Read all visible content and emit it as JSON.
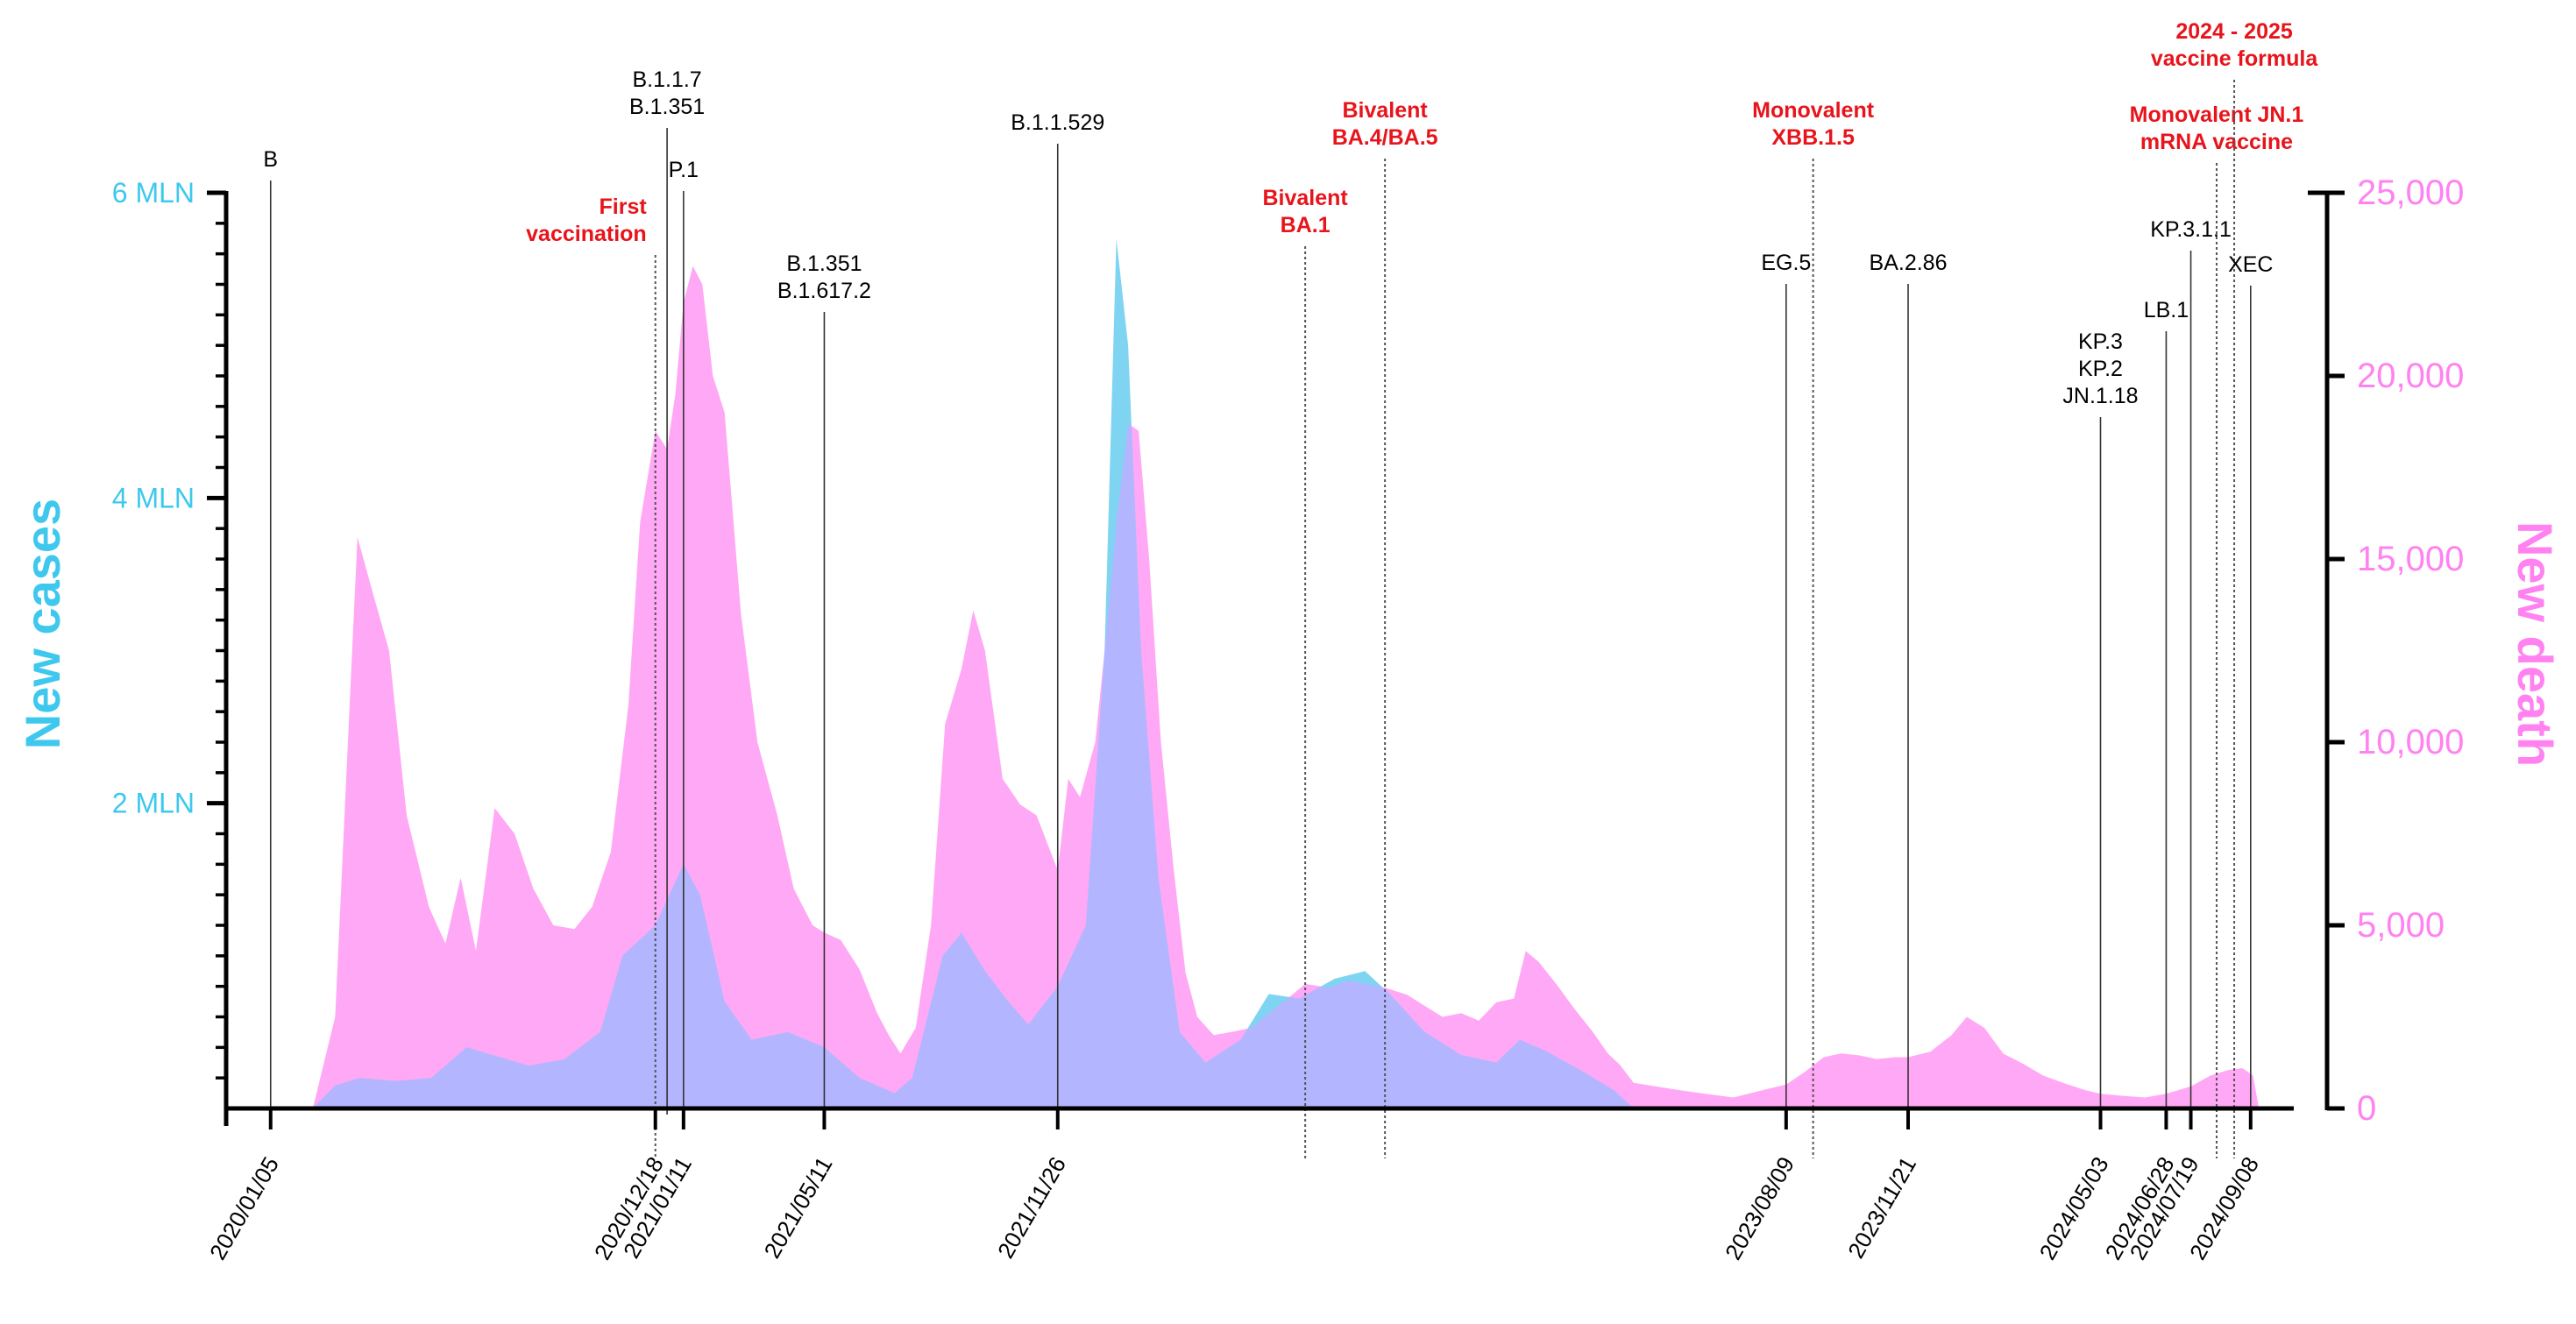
{
  "chart_data": {
    "type": "area",
    "x_domain": [
      "2020-01-05",
      "2024-10-20"
    ],
    "y_left": {
      "label": "New cases",
      "range": [
        0,
        6000000
      ],
      "ticks": [
        {
          "value": 2000000,
          "label": "2 MLN"
        },
        {
          "value": 4000000,
          "label": "4 MLN"
        },
        {
          "value": 6000000,
          "label": "6 MLN"
        }
      ],
      "color": "#3ec8ee"
    },
    "y_right": {
      "label": "New death",
      "range": [
        0,
        25000
      ],
      "ticks": [
        {
          "value": 0,
          "label": "0"
        },
        {
          "value": 5000,
          "label": "5,000"
        },
        {
          "value": 10000,
          "label": "10,000"
        },
        {
          "value": 15000,
          "label": "15,000"
        },
        {
          "value": 20000,
          "label": "20,000"
        },
        {
          "value": 25000,
          "label": "25,000"
        }
      ],
      "color": "#ff82f0"
    },
    "x_tick_labels": [
      "2020/01/05",
      "2020/12/18",
      "2021/01/11",
      "2021/05/11",
      "2021/11/26",
      "2023/08/09",
      "2023/11/21",
      "2024/05/03",
      "2024/06/28",
      "2024/07/19",
      "2024/09/08"
    ],
    "series": [
      {
        "name": "New death",
        "axis": "right",
        "color": "#ffa8f5",
        "points": [
          [
            "2020-01-05",
            0
          ],
          [
            "2020-03-01",
            0
          ],
          [
            "2020-03-20",
            2500
          ],
          [
            "2020-04-08",
            15600
          ],
          [
            "2020-04-20",
            14200
          ],
          [
            "2020-05-05",
            12500
          ],
          [
            "2020-05-20",
            8000
          ],
          [
            "2020-06-08",
            5500
          ],
          [
            "2020-06-22",
            4500
          ],
          [
            "2020-07-05",
            6300
          ],
          [
            "2020-07-18",
            4300
          ],
          [
            "2020-08-03",
            8200
          ],
          [
            "2020-08-20",
            7500
          ],
          [
            "2020-09-05",
            6000
          ],
          [
            "2020-09-22",
            5000
          ],
          [
            "2020-10-10",
            4900
          ],
          [
            "2020-10-25",
            5500
          ],
          [
            "2020-11-10",
            7000
          ],
          [
            "2020-11-25",
            11000
          ],
          [
            "2020-12-05",
            16000
          ],
          [
            "2020-12-18",
            18500
          ],
          [
            "2020-12-28",
            18000
          ],
          [
            "2021-01-04",
            19500
          ],
          [
            "2021-01-11",
            22000
          ],
          [
            "2021-01-19",
            23000
          ],
          [
            "2021-01-27",
            22500
          ],
          [
            "2021-02-05",
            20000
          ],
          [
            "2021-02-15",
            19000
          ],
          [
            "2021-03-01",
            13500
          ],
          [
            "2021-03-15",
            10000
          ],
          [
            "2021-04-01",
            8000
          ],
          [
            "2021-04-15",
            6000
          ],
          [
            "2021-05-01",
            5000
          ],
          [
            "2021-05-11",
            4800
          ],
          [
            "2021-05-25",
            4600
          ],
          [
            "2021-06-10",
            3800
          ],
          [
            "2021-06-25",
            2600
          ],
          [
            "2021-07-05",
            2000
          ],
          [
            "2021-07-15",
            1500
          ],
          [
            "2021-07-28",
            2200
          ],
          [
            "2021-08-10",
            5000
          ],
          [
            "2021-08-22",
            10500
          ],
          [
            "2021-09-05",
            12000
          ],
          [
            "2021-09-15",
            13600
          ],
          [
            "2021-09-25",
            12500
          ],
          [
            "2021-10-10",
            9000
          ],
          [
            "2021-10-25",
            8300
          ],
          [
            "2021-11-08",
            8000
          ],
          [
            "2021-11-20",
            7000
          ],
          [
            "2021-11-26",
            6500
          ],
          [
            "2021-12-05",
            9000
          ],
          [
            "2021-12-15",
            8500
          ],
          [
            "2021-12-28",
            10000
          ],
          [
            "2022-01-05",
            12500
          ],
          [
            "2022-01-15",
            16000
          ],
          [
            "2022-01-25",
            18700
          ],
          [
            "2022-02-03",
            18500
          ],
          [
            "2022-02-12",
            15000
          ],
          [
            "2022-02-22",
            10000
          ],
          [
            "2022-03-05",
            6500
          ],
          [
            "2022-03-15",
            3700
          ],
          [
            "2022-03-25",
            2500
          ],
          [
            "2022-04-08",
            2000
          ],
          [
            "2022-04-25",
            2100
          ],
          [
            "2022-05-10",
            2200
          ],
          [
            "2022-05-25",
            2600
          ],
          [
            "2022-06-10",
            3000
          ],
          [
            "2022-06-25",
            3400
          ],
          [
            "2022-07-15",
            3300
          ],
          [
            "2022-08-01",
            3500
          ],
          [
            "2022-08-15",
            3400
          ],
          [
            "2022-09-01",
            3300
          ],
          [
            "2022-09-20",
            3100
          ],
          [
            "2022-10-05",
            2800
          ],
          [
            "2022-10-20",
            2500
          ],
          [
            "2022-11-05",
            2600
          ],
          [
            "2022-11-20",
            2400
          ],
          [
            "2022-12-05",
            2900
          ],
          [
            "2022-12-20",
            3000
          ],
          [
            "2022-12-30",
            4300
          ],
          [
            "2023-01-10",
            4000
          ],
          [
            "2023-01-25",
            3400
          ],
          [
            "2023-02-10",
            2700
          ],
          [
            "2023-02-25",
            2100
          ],
          [
            "2023-03-10",
            1500
          ],
          [
            "2023-03-20",
            1200
          ],
          [
            "2023-04-01",
            700
          ],
          [
            "2023-04-20",
            600
          ],
          [
            "2023-05-10",
            500
          ],
          [
            "2023-06-01",
            400
          ],
          [
            "2023-06-25",
            300
          ],
          [
            "2023-07-20",
            500
          ],
          [
            "2023-08-09",
            650
          ],
          [
            "2023-08-25",
            1000
          ],
          [
            "2023-09-10",
            1400
          ],
          [
            "2023-09-25",
            1500
          ],
          [
            "2023-10-10",
            1450
          ],
          [
            "2023-10-25",
            1350
          ],
          [
            "2023-11-10",
            1400
          ],
          [
            "2023-11-21",
            1400
          ],
          [
            "2023-12-10",
            1550
          ],
          [
            "2023-12-28",
            2000
          ],
          [
            "2024-01-10",
            2500
          ],
          [
            "2024-01-25",
            2200
          ],
          [
            "2024-02-10",
            1500
          ],
          [
            "2024-02-28",
            1200
          ],
          [
            "2024-03-15",
            900
          ],
          [
            "2024-04-01",
            700
          ],
          [
            "2024-04-20",
            500
          ],
          [
            "2024-05-03",
            400
          ],
          [
            "2024-05-20",
            350
          ],
          [
            "2024-06-10",
            300
          ],
          [
            "2024-06-28",
            400
          ],
          [
            "2024-07-19",
            600
          ],
          [
            "2024-08-05",
            900
          ],
          [
            "2024-08-20",
            1050
          ],
          [
            "2024-09-01",
            1100
          ],
          [
            "2024-09-10",
            900
          ],
          [
            "2024-09-15",
            0
          ]
        ]
      },
      {
        "name": "New cases",
        "axis": "left",
        "color": "#7fd4f2",
        "points": [
          [
            "2020-01-05",
            0
          ],
          [
            "2020-03-01",
            0
          ],
          [
            "2020-03-20",
            150000
          ],
          [
            "2020-04-10",
            200000
          ],
          [
            "2020-05-10",
            180000
          ],
          [
            "2020-06-10",
            200000
          ],
          [
            "2020-07-10",
            400000
          ],
          [
            "2020-08-01",
            350000
          ],
          [
            "2020-09-01",
            280000
          ],
          [
            "2020-10-01",
            320000
          ],
          [
            "2020-11-01",
            500000
          ],
          [
            "2020-11-20",
            1000000
          ],
          [
            "2020-12-18",
            1200000
          ],
          [
            "2021-01-11",
            1600000
          ],
          [
            "2021-01-25",
            1400000
          ],
          [
            "2021-02-15",
            700000
          ],
          [
            "2021-03-10",
            450000
          ],
          [
            "2021-04-10",
            500000
          ],
          [
            "2021-05-11",
            400000
          ],
          [
            "2021-06-10",
            200000
          ],
          [
            "2021-07-10",
            100000
          ],
          [
            "2021-07-25",
            200000
          ],
          [
            "2021-08-20",
            1000000
          ],
          [
            "2021-09-05",
            1150000
          ],
          [
            "2021-09-25",
            900000
          ],
          [
            "2021-10-15",
            700000
          ],
          [
            "2021-11-01",
            550000
          ],
          [
            "2021-11-26",
            800000
          ],
          [
            "2021-12-20",
            1200000
          ],
          [
            "2022-01-05",
            3000000
          ],
          [
            "2022-01-15",
            5700000
          ],
          [
            "2022-01-25",
            5000000
          ],
          [
            "2022-02-05",
            3000000
          ],
          [
            "2022-02-20",
            1500000
          ],
          [
            "2022-03-10",
            500000
          ],
          [
            "2022-04-01",
            300000
          ],
          [
            "2022-05-01",
            450000
          ],
          [
            "2022-05-25",
            750000
          ],
          [
            "2022-06-20",
            720000
          ],
          [
            "2022-07-20",
            850000
          ],
          [
            "2022-08-15",
            900000
          ],
          [
            "2022-09-05",
            750000
          ],
          [
            "2022-10-05",
            500000
          ],
          [
            "2022-11-05",
            350000
          ],
          [
            "2022-12-05",
            300000
          ],
          [
            "2022-12-25",
            450000
          ],
          [
            "2023-01-15",
            380000
          ],
          [
            "2023-02-15",
            250000
          ],
          [
            "2023-03-15",
            120000
          ],
          [
            "2023-04-01",
            0
          ]
        ]
      }
    ],
    "overlap_color": "#b3b6ff",
    "annotations": [
      {
        "date": "2020-01-25",
        "lines": [
          "B"
        ],
        "style": "solid",
        "color": "#000000",
        "bold": false
      },
      {
        "date": "2020-12-18",
        "lines": [
          "First",
          "vaccination"
        ],
        "style": "dotted",
        "color": "#e8141b",
        "bold": true
      },
      {
        "date": "2020-12-28",
        "lines": [
          "B.1.1.7",
          "B.1.351"
        ],
        "style": "solid",
        "color": "#000000",
        "bold": false
      },
      {
        "date": "2021-01-11",
        "lines": [
          "P.1"
        ],
        "style": "solid",
        "color": "#000000",
        "bold": false
      },
      {
        "date": "2021-05-11",
        "lines": [
          "B.1.351",
          "B.1.617.2"
        ],
        "style": "solid",
        "color": "#000000",
        "bold": false
      },
      {
        "date": "2021-11-26",
        "lines": [
          "B.1.1.529"
        ],
        "style": "solid",
        "color": "#000000",
        "bold": false
      },
      {
        "date": "2022-06-25",
        "lines": [
          "Bivalent",
          "BA.1"
        ],
        "style": "dotted",
        "color": "#e8141b",
        "bold": true
      },
      {
        "date": "2022-09-01",
        "lines": [
          "Bivalent",
          "BA.4/BA.5"
        ],
        "style": "dotted",
        "color": "#e8141b",
        "bold": true
      },
      {
        "date": "2023-08-09",
        "lines": [
          "EG.5"
        ],
        "style": "solid",
        "color": "#000000",
        "bold": false
      },
      {
        "date": "2023-09-01",
        "lines": [
          "Monovalent",
          "XBB.1.5"
        ],
        "style": "dotted",
        "color": "#e8141b",
        "bold": true
      },
      {
        "date": "2023-11-21",
        "lines": [
          "BA.2.86"
        ],
        "style": "solid",
        "color": "#000000",
        "bold": false
      },
      {
        "date": "2024-05-03",
        "lines": [
          "KP.3",
          "KP.2",
          "JN.1.18"
        ],
        "style": "solid",
        "color": "#000000",
        "bold": false
      },
      {
        "date": "2024-06-28",
        "lines": [
          "LB.1"
        ],
        "style": "solid",
        "color": "#000000",
        "bold": false
      },
      {
        "date": "2024-07-19",
        "lines": [
          "KP.3.1.1"
        ],
        "style": "solid",
        "color": "#000000",
        "bold": false
      },
      {
        "date": "2024-08-10",
        "lines": [
          "Monovalent JN.1",
          "mRNA vaccine"
        ],
        "style": "dotted",
        "color": "#e8141b",
        "bold": true
      },
      {
        "date": "2024-08-25",
        "lines": [
          "2024 - 2025",
          "vaccine formula"
        ],
        "style": "dotted",
        "color": "#e8141b",
        "bold": true
      },
      {
        "date": "2024-09-08",
        "lines": [
          "XEC"
        ],
        "style": "solid",
        "color": "#000000",
        "bold": false
      }
    ]
  }
}
